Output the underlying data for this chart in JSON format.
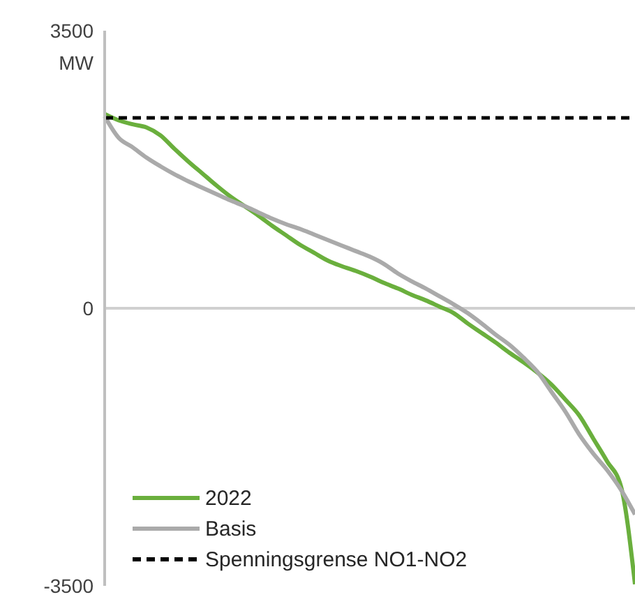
{
  "chart_data": {
    "type": "line",
    "ylabel": "MW",
    "categories": [
      null,
      null,
      null,
      null,
      null,
      null,
      null,
      null,
      null,
      null,
      null,
      null,
      null,
      null,
      null,
      null,
      null,
      null,
      null,
      null,
      null,
      null,
      null,
      null,
      null,
      null,
      null,
      null,
      null,
      null,
      null,
      null,
      null,
      null,
      null,
      null,
      null,
      null,
      null
    ],
    "series": [
      {
        "name": "2022",
        "color": "#6aaf3d",
        "values": [
          2450,
          2370,
          2320,
          2280,
          2180,
          2010,
          1850,
          1700,
          1550,
          1410,
          1290,
          1170,
          1040,
          920,
          800,
          700,
          600,
          530,
          470,
          400,
          320,
          250,
          170,
          100,
          20,
          -60,
          -190,
          -310,
          -430,
          -560,
          -680,
          -810,
          -960,
          -1150,
          -1350,
          -1640,
          -1930,
          -2250,
          -3480
        ]
      },
      {
        "name": "Basis",
        "color": "#aaaaaa",
        "values": [
          2420,
          2150,
          2030,
          1900,
          1790,
          1690,
          1600,
          1520,
          1440,
          1360,
          1290,
          1210,
          1130,
          1060,
          1000,
          930,
          860,
          790,
          720,
          650,
          560,
          440,
          340,
          250,
          150,
          50,
          -60,
          -190,
          -330,
          -460,
          -620,
          -800,
          -1050,
          -1300,
          -1590,
          -1830,
          -2040,
          -2290,
          -2600
        ]
      }
    ],
    "ref_lines": [
      {
        "axis": "y",
        "value": 2400,
        "label": "Spenningsgrense NO1-NO2",
        "color": "#000000",
        "line_style": "dashed"
      }
    ],
    "ylim": [
      -3500,
      3500
    ],
    "yticks": [
      -3500,
      0,
      3500
    ],
    "tick_labels": "y",
    "legend": "bottom left",
    "marker": "none",
    "line_style": "solid"
  }
}
